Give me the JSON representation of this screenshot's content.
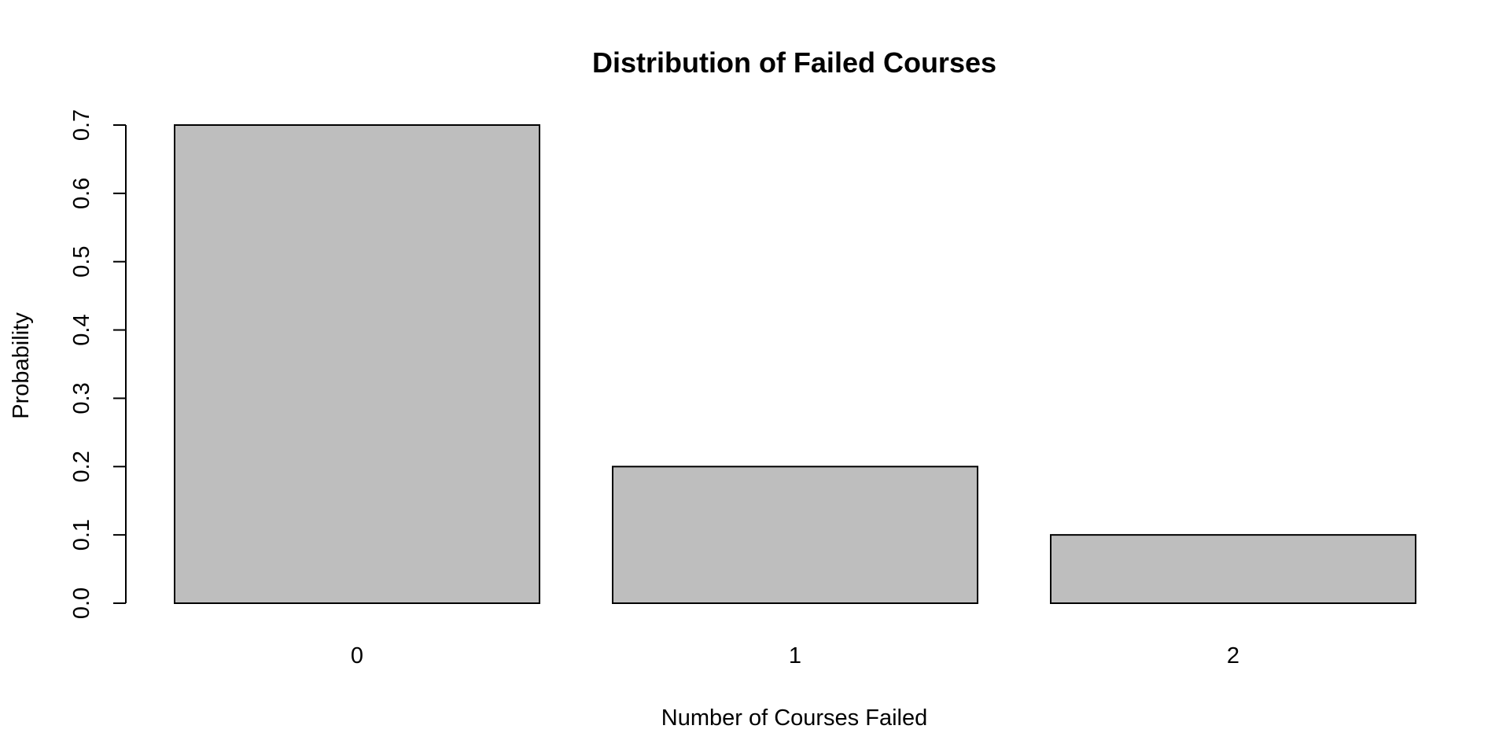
{
  "chart_data": {
    "type": "bar",
    "title": "Distribution of Failed Courses",
    "xlabel": "Number of Courses Failed",
    "ylabel": "Probability",
    "categories": [
      "0",
      "1",
      "2"
    ],
    "values": [
      0.7,
      0.2,
      0.1
    ],
    "ylim": [
      0,
      0.7
    ],
    "yticks": [
      "0.0",
      "0.1",
      "0.2",
      "0.3",
      "0.4",
      "0.5",
      "0.6",
      "0.7"
    ],
    "bar_color": "#bebebe",
    "bar_border_color": "#000000",
    "grid": false,
    "legend": "none"
  }
}
